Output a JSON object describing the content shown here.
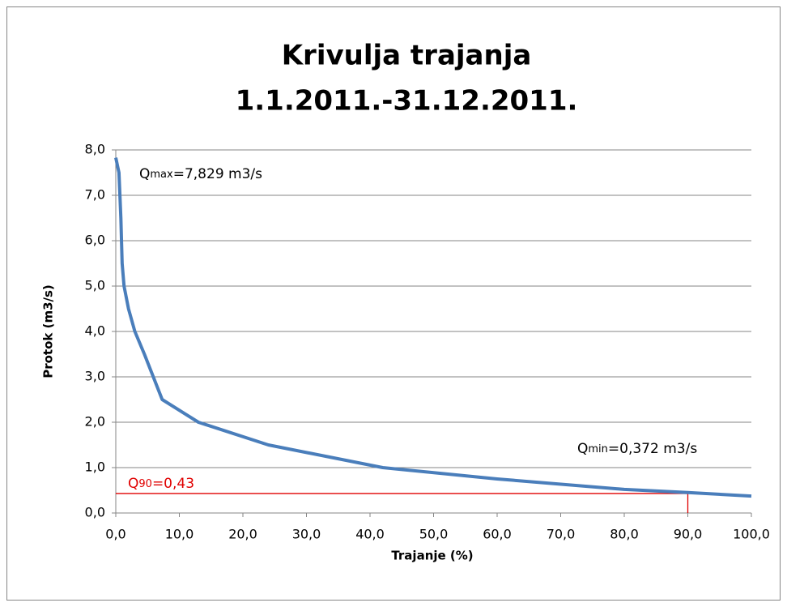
{
  "chart_data": {
    "type": "line",
    "title": [
      "Krivulja trajanja",
      "1.1.2011.-31.12.2011."
    ],
    "xlabel": "Trajanje  (%)",
    "ylabel": "Protok (m3/s)",
    "xlim": [
      0,
      100
    ],
    "ylim": [
      0,
      8
    ],
    "xticks": [
      {
        "value": 0,
        "label": "0,0"
      },
      {
        "value": 10,
        "label": "10,0"
      },
      {
        "value": 20,
        "label": "20,0"
      },
      {
        "value": 30,
        "label": "30,0"
      },
      {
        "value": 40,
        "label": "40,0"
      },
      {
        "value": 50,
        "label": "50,0"
      },
      {
        "value": 60,
        "label": "60,0"
      },
      {
        "value": 70,
        "label": "70,0"
      },
      {
        "value": 80,
        "label": "80,0"
      },
      {
        "value": 90,
        "label": "90,0"
      },
      {
        "value": 100,
        "label": "100,0"
      }
    ],
    "yticks": [
      {
        "value": 0,
        "label": "0,0"
      },
      {
        "value": 1,
        "label": "1,0"
      },
      {
        "value": 2,
        "label": "2,0"
      },
      {
        "value": 3,
        "label": "3,0"
      },
      {
        "value": 4,
        "label": "4,0"
      },
      {
        "value": 5,
        "label": "5,0"
      },
      {
        "value": 6,
        "label": "6,0"
      },
      {
        "value": 7,
        "label": "7,0"
      },
      {
        "value": 8,
        "label": "8,0"
      }
    ],
    "grid": true,
    "x": [
      0,
      0.5,
      0.8,
      1,
      1.3,
      2,
      3,
      4.5,
      7.3,
      13,
      24,
      42,
      60,
      80,
      90,
      100
    ],
    "series": [
      {
        "color": "#4a7ebb",
        "values": [
          7.829,
          7.5,
          6.5,
          5.5,
          5.0,
          4.5,
          4.0,
          3.5,
          2.5,
          2.0,
          1.5,
          1.0,
          0.75,
          0.52,
          0.45,
          0.372
        ]
      }
    ],
    "q90": {
      "x": 90,
      "y": 0.43,
      "color": "#e00000"
    },
    "annotations": [
      {
        "parts": [
          "Q",
          "max",
          "=7,829 m3/s"
        ]
      },
      {
        "parts": [
          "Q",
          "min",
          "=0,372 m3/s"
        ]
      },
      {
        "parts": [
          "Q",
          "90",
          "=0,43"
        ]
      }
    ]
  }
}
